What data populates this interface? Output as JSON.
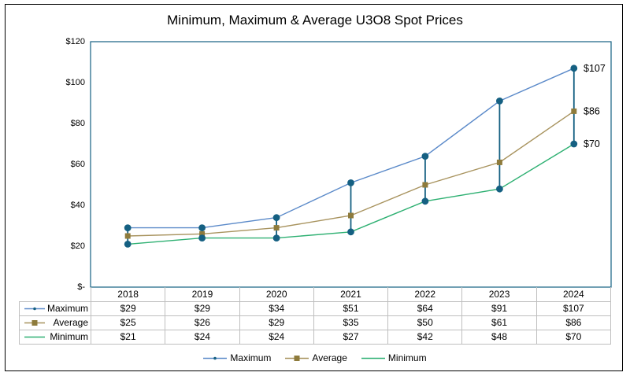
{
  "chart_data": {
    "type": "line",
    "title": "Minimum, Maximum & Average U3O8 Spot Prices",
    "categories": [
      "2018",
      "2019",
      "2020",
      "2021",
      "2022",
      "2023",
      "2024"
    ],
    "series": [
      {
        "name": "Maximum",
        "values": [
          29,
          29,
          34,
          51,
          64,
          91,
          107
        ],
        "labels": [
          "$29",
          "$29",
          "$34",
          "$51",
          "$64",
          "$91",
          "$107"
        ],
        "line_color": "#5b8ac9",
        "marker": "circle",
        "marker_color": "#156082",
        "end_label": "$107"
      },
      {
        "name": "Average",
        "values": [
          25,
          26,
          29,
          35,
          50,
          61,
          86
        ],
        "labels": [
          "$25",
          "$26",
          "$29",
          "$35",
          "$50",
          "$61",
          "$86"
        ],
        "line_color": "#a8935e",
        "marker": "square",
        "marker_color": "#8e7b3c",
        "end_label": "$86"
      },
      {
        "name": "Minimum",
        "values": [
          21,
          24,
          24,
          27,
          42,
          48,
          70
        ],
        "labels": [
          "$21",
          "$24",
          "$24",
          "$27",
          "$42",
          "$48",
          "$70"
        ],
        "line_color": "#2eb072",
        "marker": "circle",
        "marker_color": "#156082",
        "end_label": "$70"
      }
    ],
    "high_low_lines": {
      "show": true,
      "color": "#156082"
    },
    "y_axis": {
      "min": 0,
      "max": 120,
      "step": 20,
      "tick_labels": [
        "$120",
        "$100",
        "$80",
        "$60",
        "$40",
        "$20",
        "$-"
      ]
    },
    "axis_color": "#156082",
    "grid": false,
    "legend_position": "bottom",
    "legend": [
      "Maximum",
      "Average",
      "Minimum"
    ],
    "data_table_shown": true
  }
}
